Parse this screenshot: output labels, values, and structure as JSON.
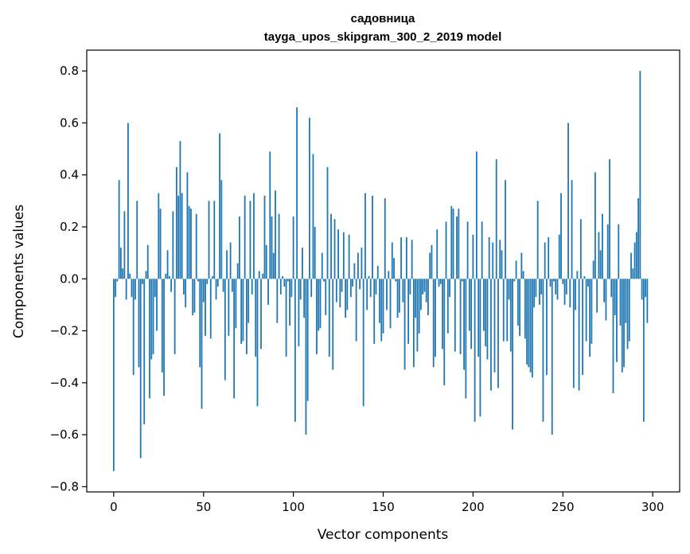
{
  "chart_data": {
    "type": "bar",
    "title": "садовница",
    "subtitle": "tayga_upos_skipgram_300_2_2019 model",
    "xlabel": "Vector components",
    "ylabel": "Components values",
    "xlim": [
      -15,
      315
    ],
    "ylim": [
      -0.82,
      0.88
    ],
    "xticks": [
      0,
      50,
      100,
      150,
      200,
      250,
      300
    ],
    "xtick_labels": [
      "0",
      "50",
      "100",
      "150",
      "200",
      "250",
      "300"
    ],
    "yticks": [
      -0.8,
      -0.6,
      -0.4,
      -0.2,
      0.0,
      0.2,
      0.4,
      0.6,
      0.8
    ],
    "ytick_labels": [
      "−0.8",
      "−0.6",
      "−0.4",
      "−0.2",
      "0.0",
      "0.2",
      "0.4",
      "0.6",
      "0.8"
    ],
    "grid": false,
    "bar_color": "#1f77b4",
    "values": [
      -0.74,
      -0.07,
      -0.01,
      0.38,
      0.12,
      0.04,
      0.26,
      -0.08,
      0.6,
      0.02,
      -0.07,
      -0.37,
      -0.08,
      0.3,
      -0.34,
      -0.69,
      -0.02,
      -0.56,
      0.03,
      0.13,
      -0.46,
      -0.31,
      -0.29,
      -0.07,
      -0.2,
      0.33,
      0.27,
      -0.36,
      -0.45,
      0.02,
      0.11,
      0.01,
      -0.05,
      0.26,
      -0.29,
      0.43,
      0.32,
      0.53,
      0.33,
      -0.06,
      -0.11,
      0.41,
      0.28,
      0.27,
      -0.14,
      -0.13,
      0.25,
      -0.01,
      -0.34,
      -0.5,
      -0.09,
      -0.22,
      -0.02,
      0.3,
      -0.23,
      0.01,
      0.3,
      -0.08,
      -0.03,
      0.56,
      0.38,
      -0.05,
      -0.39,
      0.11,
      -0.22,
      0.14,
      -0.05,
      -0.46,
      -0.19,
      0.06,
      0.24,
      -0.25,
      -0.24,
      0.32,
      -0.29,
      -0.17,
      0.3,
      -0.06,
      0.33,
      -0.3,
      -0.49,
      0.03,
      -0.27,
      0.02,
      0.32,
      0.13,
      -0.1,
      0.49,
      0.24,
      0.1,
      0.34,
      -0.17,
      0.25,
      -0.06,
      0.01,
      -0.03,
      -0.3,
      -0.01,
      -0.18,
      -0.07,
      0.24,
      -0.55,
      0.66,
      -0.26,
      -0.08,
      0.12,
      -0.15,
      -0.6,
      -0.47,
      0.62,
      -0.07,
      0.48,
      0.2,
      -0.29,
      -0.2,
      -0.19,
      0.1,
      -0.01,
      -0.14,
      0.43,
      -0.3,
      0.25,
      -0.35,
      0.23,
      -0.09,
      0.19,
      -0.11,
      -0.05,
      0.18,
      -0.15,
      -0.12,
      0.17,
      -0.07,
      -0.03,
      0.06,
      -0.24,
      0.1,
      -0.04,
      0.12,
      -0.49,
      0.33,
      -0.12,
      0.01,
      -0.07,
      0.32,
      -0.25,
      -0.06,
      0.05,
      -0.17,
      -0.24,
      -0.21,
      0.31,
      -0.12,
      0.03,
      -0.19,
      0.14,
      0.08,
      -0.01,
      -0.15,
      -0.13,
      0.16,
      -0.09,
      -0.35,
      0.16,
      -0.25,
      -0.06,
      0.15,
      -0.34,
      -0.15,
      -0.28,
      -0.21,
      -0.12,
      -0.06,
      -0.05,
      -0.09,
      -0.14,
      0.1,
      0.13,
      -0.34,
      -0.3,
      0.19,
      -0.03,
      -0.02,
      -0.27,
      -0.41,
      0.22,
      -0.21,
      -0.07,
      0.28,
      0.27,
      -0.28,
      0.24,
      0.27,
      -0.29,
      -0.01,
      -0.35,
      -0.46,
      0.22,
      -0.2,
      -0.27,
      0.17,
      -0.55,
      0.49,
      -0.3,
      -0.53,
      0.22,
      -0.2,
      -0.26,
      -0.31,
      0.16,
      -0.43,
      0.14,
      -0.36,
      0.46,
      -0.42,
      0.15,
      0.11,
      -0.24,
      0.38,
      -0.24,
      -0.08,
      -0.28,
      -0.58,
      -0.01,
      0.07,
      -0.18,
      -0.22,
      0.1,
      0.03,
      -0.23,
      -0.33,
      -0.34,
      -0.36,
      -0.38,
      -0.11,
      -0.07,
      0.3,
      -0.1,
      -0.06,
      -0.55,
      0.14,
      -0.37,
      0.16,
      -0.03,
      -0.6,
      -0.01,
      -0.06,
      -0.08,
      0.17,
      0.33,
      -0.02,
      -0.1,
      -0.06,
      0.6,
      -0.11,
      0.38,
      -0.42,
      -0.12,
      0.03,
      -0.43,
      0.23,
      -0.37,
      0.01,
      -0.24,
      -0.03,
      -0.3,
      -0.25,
      0.07,
      0.41,
      -0.13,
      0.18,
      0.11,
      0.25,
      -0.09,
      -0.16,
      0.21,
      0.46,
      -0.07,
      -0.44,
      -0.14,
      -0.32,
      0.21,
      -0.18,
      -0.36,
      -0.34,
      -0.17,
      -0.27,
      -0.24,
      0.1,
      0.04,
      0.14,
      0.18,
      0.31,
      0.8,
      -0.08,
      -0.55,
      -0.07,
      -0.17
    ]
  }
}
